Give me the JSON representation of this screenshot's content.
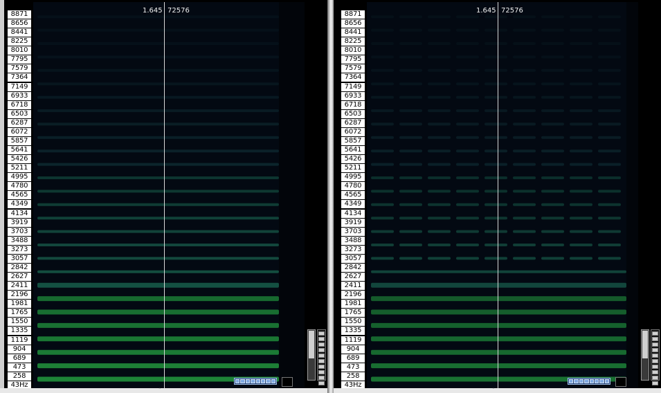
{
  "freq_labels": [
    "8871",
    "8656",
    "8441",
    "8225",
    "8010",
    "7795",
    "7579",
    "7364",
    "7149",
    "6933",
    "6718",
    "6503",
    "6287",
    "6072",
    "5857",
    "5641",
    "5426",
    "5211",
    "4995",
    "4780",
    "4565",
    "4349",
    "4134",
    "3919",
    "3703",
    "3488",
    "3273",
    "3057",
    "2842",
    "2627",
    "2411",
    "2196",
    "1981",
    "1765",
    "1550",
    "1335",
    "1119",
    "904",
    "689",
    "473",
    "258",
    "43Hz"
  ],
  "panes": [
    {
      "time_readout": "1.645",
      "sample_readout": "72576"
    },
    {
      "time_readout": "1.645",
      "sample_readout": "72576"
    }
  ],
  "colors": {
    "band_low": "#1f8a3a",
    "band_mid": "#1c6e56",
    "band_high": "#1a4d52",
    "cursor": "#d9d9d9"
  }
}
